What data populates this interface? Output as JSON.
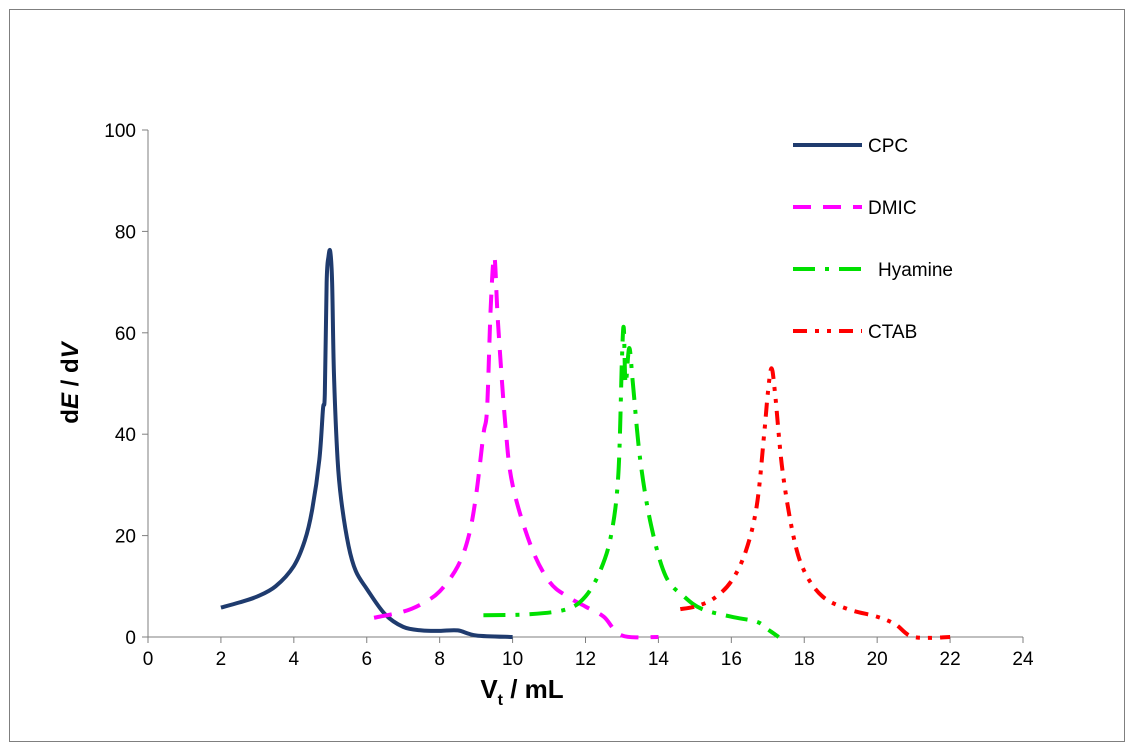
{
  "chart_data": {
    "type": "line",
    "title": "",
    "ylabel": {
      "prefix": "d",
      "italic1": "E",
      "middle": " / d",
      "italic2": "V"
    },
    "xlabel": {
      "main": "V",
      "sub": "t",
      "rest": " / mL"
    },
    "xlim": [
      0,
      24
    ],
    "ylim": [
      0,
      100
    ],
    "xticks": [
      0,
      2,
      4,
      6,
      8,
      10,
      12,
      14,
      16,
      18,
      20,
      22,
      24
    ],
    "yticks": [
      0,
      20,
      40,
      60,
      80,
      100
    ],
    "grid": false,
    "legend_position": "top-right",
    "series": [
      {
        "name": "CPC",
        "color": "#1f3b6e",
        "dash": "solid",
        "points": [
          [
            2.0,
            5.8
          ],
          [
            2.5,
            6.8
          ],
          [
            3.0,
            8.0
          ],
          [
            3.5,
            10.0
          ],
          [
            4.0,
            14.0
          ],
          [
            4.3,
            19.0
          ],
          [
            4.5,
            25.0
          ],
          [
            4.7,
            35.0
          ],
          [
            4.8,
            45.0
          ],
          [
            4.85,
            48.0
          ],
          [
            4.9,
            70.0
          ],
          [
            4.95,
            75.0
          ],
          [
            5.0,
            76.0
          ],
          [
            5.05,
            70.0
          ],
          [
            5.1,
            52.0
          ],
          [
            5.2,
            35.0
          ],
          [
            5.3,
            27.0
          ],
          [
            5.5,
            18.0
          ],
          [
            5.7,
            13.0
          ],
          [
            6.0,
            9.5
          ],
          [
            6.5,
            4.5
          ],
          [
            7.0,
            2.0
          ],
          [
            7.5,
            1.3
          ],
          [
            8.0,
            1.2
          ],
          [
            8.5,
            1.3
          ],
          [
            9.0,
            0.3
          ],
          [
            10.0,
            0.0
          ]
        ]
      },
      {
        "name": "DMIC",
        "color": "#ff00ff",
        "dash": "dashed",
        "points": [
          [
            6.2,
            3.8
          ],
          [
            7.0,
            5.0
          ],
          [
            7.5,
            6.5
          ],
          [
            8.0,
            9.0
          ],
          [
            8.5,
            14.0
          ],
          [
            8.8,
            20.0
          ],
          [
            9.0,
            28.0
          ],
          [
            9.2,
            40.0
          ],
          [
            9.3,
            45.0
          ],
          [
            9.4,
            65.0
          ],
          [
            9.5,
            75.0
          ],
          [
            9.6,
            62.0
          ],
          [
            9.8,
            42.0
          ],
          [
            10.0,
            30.0
          ],
          [
            10.5,
            18.0
          ],
          [
            11.0,
            11.0
          ],
          [
            11.5,
            8.0
          ],
          [
            12.0,
            6.0
          ],
          [
            12.5,
            4.0
          ],
          [
            13.0,
            0.3
          ],
          [
            14.0,
            0.0
          ]
        ]
      },
      {
        "name": "Hyamine",
        "color": "#00e000",
        "dash": "dash-dot",
        "points": [
          [
            9.2,
            4.3
          ],
          [
            10.5,
            4.5
          ],
          [
            11.5,
            5.5
          ],
          [
            12.0,
            8.0
          ],
          [
            12.4,
            13.0
          ],
          [
            12.7,
            20.0
          ],
          [
            12.9,
            32.0
          ],
          [
            13.0,
            55.0
          ],
          [
            13.05,
            61.0
          ],
          [
            13.1,
            50.0
          ],
          [
            13.2,
            57.0
          ],
          [
            13.3,
            50.0
          ],
          [
            13.5,
            35.0
          ],
          [
            13.8,
            22.0
          ],
          [
            14.2,
            12.0
          ],
          [
            14.7,
            8.0
          ],
          [
            15.2,
            5.5
          ],
          [
            16.0,
            4.0
          ],
          [
            16.7,
            3.0
          ],
          [
            17.0,
            1.5
          ],
          [
            17.3,
            0.0
          ]
        ]
      },
      {
        "name": "CTAB",
        "color": "#ff0000",
        "dash": "dash-dot-dot",
        "points": [
          [
            14.6,
            5.5
          ],
          [
            15.0,
            6.0
          ],
          [
            15.5,
            7.5
          ],
          [
            16.0,
            11.0
          ],
          [
            16.4,
            17.0
          ],
          [
            16.7,
            26.0
          ],
          [
            16.9,
            40.0
          ],
          [
            17.0,
            48.0
          ],
          [
            17.1,
            53.0
          ],
          [
            17.2,
            48.0
          ],
          [
            17.4,
            33.0
          ],
          [
            17.7,
            20.0
          ],
          [
            18.0,
            13.0
          ],
          [
            18.5,
            8.0
          ],
          [
            19.2,
            5.5
          ],
          [
            20.0,
            4.0
          ],
          [
            20.5,
            2.5
          ],
          [
            21.0,
            0.0
          ],
          [
            22.0,
            0.0
          ]
        ]
      }
    ]
  }
}
